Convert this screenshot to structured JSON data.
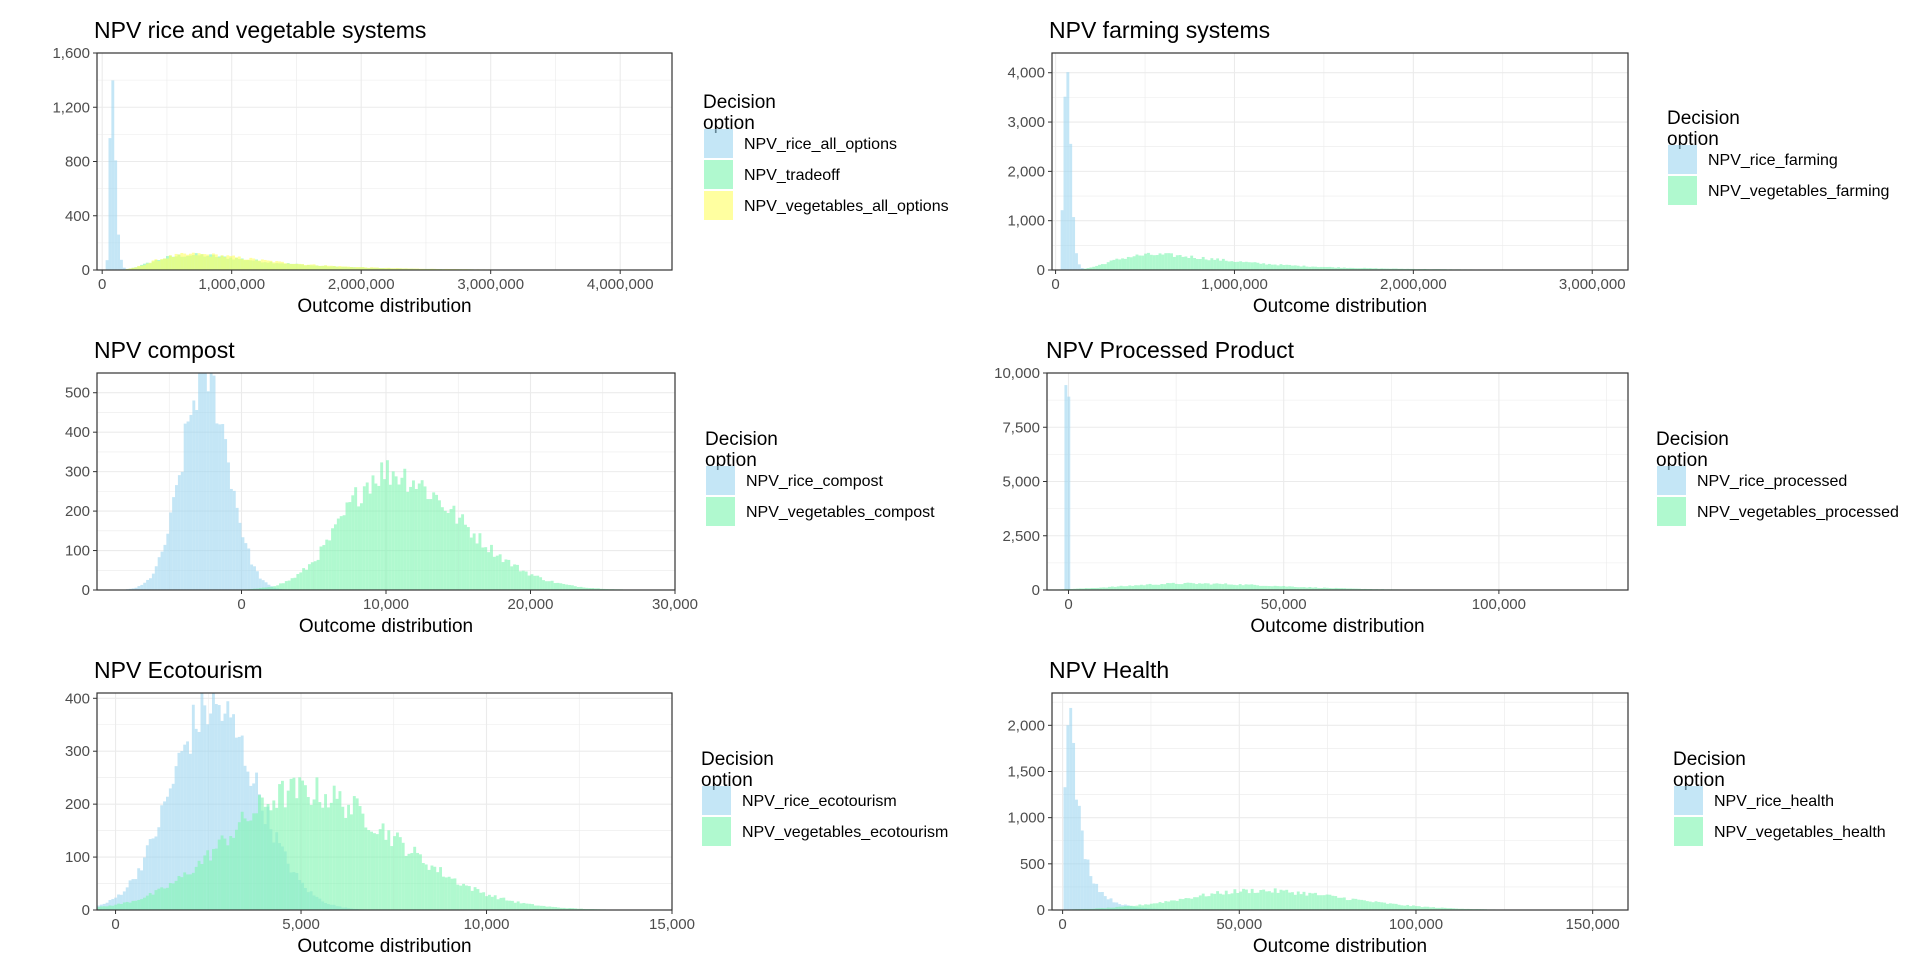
{
  "chart_data": [
    {
      "type": "histogram",
      "title": "NPV rice and vegetable systems",
      "xlabel": "Outcome distribution",
      "ylabel": "",
      "xlim": [
        -40000,
        4400000
      ],
      "ylim": [
        0,
        1600
      ],
      "x_ticks": [
        0,
        1000000,
        2000000,
        3000000,
        4000000
      ],
      "x_tick_labels": [
        "0",
        "1,000,000",
        "2,000,000",
        "3,000,000",
        "4,000,000"
      ],
      "y_ticks": [
        0,
        400,
        800,
        1200,
        1600
      ],
      "y_tick_labels": [
        "0",
        "400",
        "800",
        "1,200",
        "1,600"
      ],
      "grid": true,
      "legend": {
        "title": [
          "Decision",
          "option"
        ],
        "placement": "right"
      },
      "series": [
        {
          "name": "NPV_rice_all_options",
          "color": "#9FD6F0",
          "dist": "lognormal",
          "peak": 1420,
          "mode": 75000,
          "sigma": 0.28
        },
        {
          "name": "NPV_tradeoff",
          "color": "#7FF5B2",
          "dist": "lognormal",
          "peak": 110,
          "mode": 700000,
          "sigma": 0.55
        },
        {
          "name": "NPV_vegetables_all_options",
          "color": "#FFFF66",
          "dist": "lognormal",
          "peak": 115,
          "mode": 720000,
          "sigma": 0.55
        }
      ]
    },
    {
      "type": "histogram",
      "title": "NPV farming systems",
      "xlabel": "Outcome distribution",
      "ylabel": "",
      "xlim": [
        -20000,
        3200000
      ],
      "ylim": [
        0,
        4400
      ],
      "x_ticks": [
        0,
        1000000,
        2000000,
        3000000
      ],
      "x_tick_labels": [
        "0",
        "1,000,000",
        "2,000,000",
        "3,000,000"
      ],
      "y_ticks": [
        0,
        1000,
        2000,
        3000,
        4000
      ],
      "y_tick_labels": [
        "0",
        "1,000",
        "2,000",
        "3,000",
        "4,000"
      ],
      "grid": true,
      "legend": {
        "title": [
          "Decision",
          "option"
        ],
        "placement": "right"
      },
      "series": [
        {
          "name": "NPV_rice_farming",
          "color": "#9FD6F0",
          "dist": "lognormal",
          "peak": 4400,
          "mode": 60000,
          "sigma": 0.3
        },
        {
          "name": "NPV_vegetables_farming",
          "color": "#7FF5B2",
          "dist": "lognormal",
          "peak": 310,
          "mode": 560000,
          "sigma": 0.55
        }
      ]
    },
    {
      "type": "histogram",
      "title": "NPV compost",
      "xlabel": "Outcome distribution",
      "ylabel": "",
      "xlim": [
        -10000,
        30000
      ],
      "ylim": [
        0,
        550
      ],
      "x_ticks": [
        0,
        10000,
        20000,
        30000
      ],
      "x_tick_labels": [
        "0",
        "10,000",
        "20,000",
        "30,000"
      ],
      "y_ticks": [
        0,
        100,
        200,
        300,
        400,
        500
      ],
      "y_tick_labels": [
        "0",
        "100",
        "200",
        "300",
        "400",
        "500"
      ],
      "grid": true,
      "legend": {
        "title": [
          "Decision",
          "option"
        ],
        "placement": "right"
      },
      "series": [
        {
          "name": "NPV_rice_compost",
          "color": "#9FD6F0",
          "dist": "normal",
          "peak": 545,
          "mode": -2500,
          "sd": 1600
        },
        {
          "name": "NPV_vegetables_compost",
          "color": "#7FF5B2",
          "dist": "skewnormal",
          "peak": 300,
          "mode": 10000,
          "sdl": 3000,
          "sdr": 5000
        }
      ]
    },
    {
      "type": "histogram",
      "title": "NPV Processed Product",
      "xlabel": "Outcome distribution",
      "ylabel": "",
      "xlim": [
        -5000,
        130000
      ],
      "ylim": [
        0,
        10000
      ],
      "x_ticks": [
        0,
        50000,
        100000
      ],
      "x_tick_labels": [
        "0",
        "50,000",
        "100,000"
      ],
      "y_ticks": [
        0,
        2500,
        5000,
        7500,
        10000
      ],
      "y_tick_labels": [
        "0",
        "2,500",
        "5,000",
        "7,500",
        "10,000"
      ],
      "grid": true,
      "legend": {
        "title": [
          "Decision",
          "option"
        ],
        "placement": "right"
      },
      "series": [
        {
          "name": "NPV_rice_processed",
          "color": "#9FD6F0",
          "dist": "spike",
          "peak": 10000,
          "mode": 0,
          "sd": 300
        },
        {
          "name": "NPV_vegetables_processed",
          "color": "#7FF5B2",
          "dist": "skewnormal",
          "peak": 300,
          "mode": 27000,
          "sdl": 14000,
          "sdr": 22000
        }
      ]
    },
    {
      "type": "histogram",
      "title": "NPV Ecotourism",
      "xlabel": "Outcome distribution",
      "ylabel": "",
      "xlim": [
        -500,
        15000
      ],
      "ylim": [
        0,
        410
      ],
      "x_ticks": [
        0,
        5000,
        10000,
        15000
      ],
      "x_tick_labels": [
        "0",
        "5,000",
        "10,000",
        "15,000"
      ],
      "y_ticks": [
        0,
        100,
        200,
        300,
        400
      ],
      "y_tick_labels": [
        "0",
        "100",
        "200",
        "300",
        "400"
      ],
      "grid": true,
      "legend": {
        "title": [
          "Decision",
          "option"
        ],
        "placement": "right"
      },
      "series": [
        {
          "name": "NPV_rice_ecotourism",
          "color": "#9FD6F0",
          "dist": "skewnormal",
          "peak": 385,
          "mode": 2600,
          "sdl": 1100,
          "sdr": 1200
        },
        {
          "name": "NPV_vegetables_ecotourism",
          "color": "#7FF5B2",
          "dist": "skewnormal",
          "peak": 225,
          "mode": 5000,
          "sdl": 2000,
          "sdr": 2500
        }
      ]
    },
    {
      "type": "histogram",
      "title": "NPV Health",
      "xlabel": "Outcome distribution",
      "ylabel": "",
      "xlim": [
        -3000,
        160000
      ],
      "ylim": [
        0,
        2350
      ],
      "x_ticks": [
        0,
        50000,
        100000,
        150000
      ],
      "x_tick_labels": [
        "0",
        "50,000",
        "100,000",
        "150,000"
      ],
      "y_ticks": [
        0,
        500,
        1000,
        1500,
        2000
      ],
      "y_tick_labels": [
        "0",
        "500",
        "1,000",
        "1,500",
        "2,000"
      ],
      "grid": true,
      "legend": {
        "title": [
          "Decision",
          "option"
        ],
        "placement": "right"
      },
      "series": [
        {
          "name": "NPV_rice_health",
          "color": "#9FD6F0",
          "dist": "lognormal",
          "peak": 2300,
          "mode": 1500,
          "sigma": 0.9
        },
        {
          "name": "NPV_vegetables_health",
          "color": "#7FF5B2",
          "dist": "skewnormal",
          "peak": 210,
          "mode": 55000,
          "sdl": 20000,
          "sdr": 25000
        }
      ]
    }
  ]
}
